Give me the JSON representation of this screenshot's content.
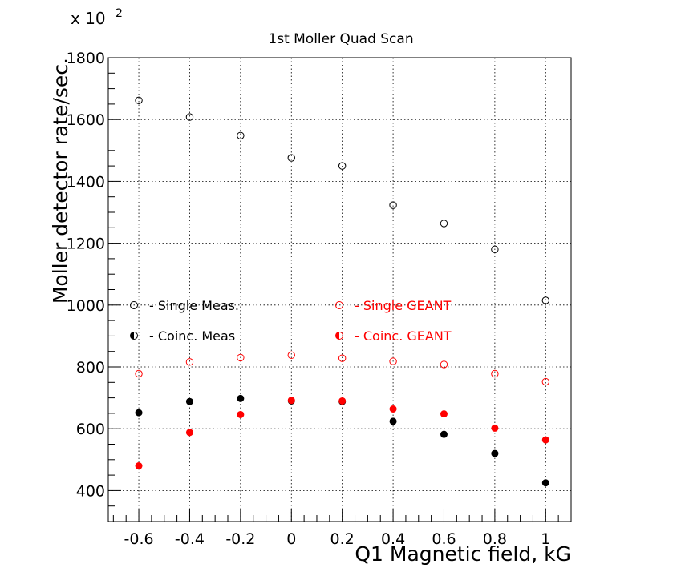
{
  "chart_data": {
    "type": "scatter",
    "title": "1st Moller Quad Scan",
    "xlabel": "Q1 Magnetic field, kG",
    "ylabel": "Moller detector rate/sec.",
    "y_multiplier_label": "x 10",
    "y_multiplier_exponent": "2",
    "xlim": [
      -0.72,
      1.1
    ],
    "ylim": [
      300,
      1800
    ],
    "x_ticks": [
      -0.6,
      -0.4,
      -0.2,
      0,
      0.2,
      0.4,
      0.6,
      0.8,
      1
    ],
    "x_tick_labels": [
      "-0.6",
      "-0.4",
      "-0.2",
      "0",
      "0.2",
      "0.4",
      "0.6",
      "0.8",
      "1"
    ],
    "y_ticks": [
      400,
      600,
      800,
      1000,
      1200,
      1400,
      1600,
      1800
    ],
    "y_tick_labels": [
      "400",
      "600",
      "800",
      "1000",
      "1200",
      "1400",
      "1600",
      "1800"
    ],
    "grid": true,
    "legend_placement": "middle",
    "x": [
      -0.6,
      -0.4,
      -0.2,
      0,
      0.2,
      0.4,
      0.6,
      0.8,
      1
    ],
    "series": [
      {
        "name": "- Single Meas.",
        "color": "#000000",
        "marker": "open-circle",
        "values": [
          1662,
          1608,
          1548,
          1476,
          1450,
          1323,
          1264,
          1180,
          1015
        ]
      },
      {
        "name": "- Coinc. Meas",
        "color": "#000000",
        "marker": "filled-circle",
        "values": [
          652,
          688,
          698,
          690,
          688,
          624,
          582,
          520,
          425
        ]
      },
      {
        "name": "- Single GEANT",
        "color": "#ff0000",
        "marker": "open-circle",
        "values": [
          778,
          816,
          830,
          838,
          828,
          818,
          808,
          778,
          752
        ]
      },
      {
        "name": "- Coinc. GEANT",
        "color": "#ff0000",
        "marker": "filled-circle",
        "values": [
          480,
          588,
          646,
          692,
          690,
          664,
          648,
          602,
          564
        ]
      }
    ]
  }
}
